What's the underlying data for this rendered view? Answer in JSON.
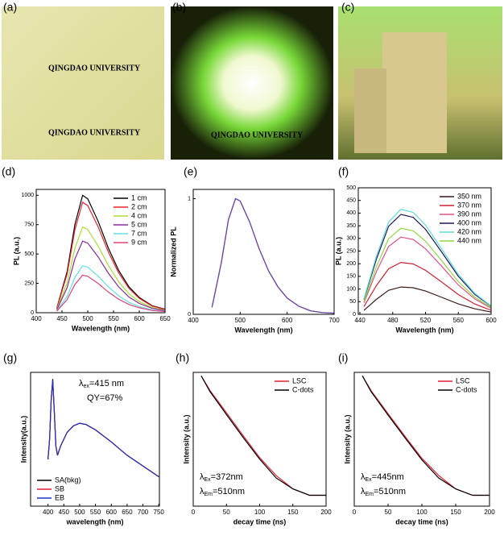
{
  "photos": [
    {
      "label": "(a)",
      "texts": [
        "QINGDAO UNIVERSITY",
        "QINGDAO UNIVERSITY"
      ]
    },
    {
      "label": "(b)",
      "texts": [
        "QINGDAO UNIVERSITY"
      ]
    },
    {
      "label": "(c)",
      "texts": []
    }
  ],
  "chart_data": [
    {
      "type": "line",
      "label": "(d)",
      "ylabel": "PL (a.u.)",
      "xlabel": "Wavelength (nm)",
      "xlim": [
        400,
        650
      ],
      "xticks": [
        400,
        450,
        500,
        550,
        600,
        650
      ],
      "ylim": [
        0,
        1050
      ],
      "yticks": [
        0,
        250,
        500,
        750,
        1000
      ],
      "legend": "upper right",
      "x": [
        440,
        460,
        475,
        490,
        500,
        520,
        540,
        560,
        580,
        600,
        625,
        650
      ],
      "series": [
        {
          "name": "1 cm",
          "color": "#000000",
          "values": [
            40,
            350,
            750,
            1000,
            970,
            780,
            550,
            360,
            220,
            130,
            60,
            30
          ]
        },
        {
          "name": "2 cm",
          "color": "#e8202a",
          "values": [
            38,
            330,
            705,
            940,
            912,
            733,
            517,
            338,
            207,
            122,
            56,
            28
          ]
        },
        {
          "name": "4 cm",
          "color": "#a8e030",
          "values": [
            29,
            256,
            548,
            730,
            708,
            569,
            402,
            263,
            161,
            95,
            44,
            22
          ]
        },
        {
          "name": "5 cm",
          "color": "#8a2a9a",
          "values": [
            24,
            214,
            458,
            610,
            592,
            476,
            336,
            220,
            134,
            79,
            37,
            18
          ]
        },
        {
          "name": "7 cm",
          "color": "#60e0e0",
          "values": [
            16,
            140,
            300,
            400,
            388,
            312,
            220,
            144,
            88,
            52,
            24,
            12
          ]
        },
        {
          "name": "9 cm",
          "color": "#e0407a",
          "values": [
            13,
            112,
            240,
            320,
            310,
            250,
            176,
            115,
            70,
            42,
            19,
            10
          ]
        }
      ]
    },
    {
      "type": "line",
      "label": "(e)",
      "ylabel": "Normalized PL",
      "xlabel": "Wavelength (nm)",
      "xlim": [
        400,
        700
      ],
      "xticks": [
        400,
        500,
        600,
        700
      ],
      "ylim": [
        0,
        1.08
      ],
      "yticks": [
        0,
        1
      ],
      "x": [
        440,
        460,
        475,
        490,
        500,
        520,
        540,
        560,
        580,
        600,
        625,
        650,
        675,
        700
      ],
      "series": [
        {
          "color": "#3aa0b0",
          "values": [
            0.06,
            0.45,
            0.82,
            1.0,
            0.98,
            0.8,
            0.57,
            0.38,
            0.24,
            0.14,
            0.07,
            0.03,
            0.015,
            0.01
          ]
        },
        {
          "color": "#d04060",
          "values": [
            0.06,
            0.45,
            0.82,
            1.0,
            0.98,
            0.8,
            0.57,
            0.38,
            0.24,
            0.14,
            0.07,
            0.03,
            0.015,
            0.01
          ]
        },
        {
          "color": "#6a4ab0",
          "values": [
            0.06,
            0.45,
            0.82,
            1.0,
            0.98,
            0.8,
            0.57,
            0.38,
            0.24,
            0.14,
            0.07,
            0.03,
            0.015,
            0.01
          ]
        }
      ]
    },
    {
      "type": "line",
      "label": "(f)",
      "ylabel": "PL (a.u.)",
      "xlabel": "Wavelength (nm)",
      "xlim": [
        438,
        600
      ],
      "xticks": [
        440,
        480,
        520,
        560,
        600
      ],
      "ylim": [
        0,
        500
      ],
      "yticks": [
        0,
        50,
        100,
        150,
        200,
        250,
        300,
        350,
        400,
        450,
        500
      ],
      "legend": "upper right",
      "x": [
        445,
        460,
        475,
        490,
        505,
        520,
        540,
        560,
        580,
        600
      ],
      "series": [
        {
          "name": "350 nm",
          "color": "#3a1a1a",
          "values": [
            16,
            59,
            95,
            108,
            105,
            92,
            67,
            41,
            22,
            9
          ]
        },
        {
          "name": "370 nm",
          "color": "#d02030",
          "values": [
            31,
            113,
            180,
            205,
            199,
            174,
            127,
            78,
            41,
            16
          ]
        },
        {
          "name": "390 nm",
          "color": "#e0508a",
          "values": [
            46,
            168,
            268,
            305,
            296,
            259,
            189,
            116,
            61,
            24
          ]
        },
        {
          "name": "400 nm",
          "color": "#1a1a5a",
          "values": [
            59,
            217,
            348,
            395,
            383,
            336,
            245,
            150,
            79,
            32
          ]
        },
        {
          "name": "420 nm",
          "color": "#60d8d8",
          "values": [
            62,
            228,
            365,
            415,
            403,
            353,
            257,
            158,
            83,
            33
          ]
        },
        {
          "name": "440 nm",
          "color": "#90d840",
          "values": [
            51,
            187,
            299,
            340,
            330,
            289,
            211,
            129,
            68,
            27
          ]
        }
      ]
    },
    {
      "type": "line",
      "label": "(g)",
      "ylabel": "Intensity(a.u.)",
      "xlabel": "wavelength (nm)",
      "xlim": [
        345,
        752
      ],
      "xticks": [
        400,
        450,
        500,
        550,
        600,
        650,
        700,
        750
      ],
      "ylim": [
        0,
        1
      ],
      "legend": "lower left",
      "annotation": [
        [
          {
            "text": "λ"
          },
          {
            "text": "ex",
            "sub": true
          },
          {
            "text": "=415 nm"
          }
        ],
        [
          {
            "text": "QY=67%"
          }
        ]
      ],
      "x": [
        400,
        405,
        410,
        415,
        420,
        425,
        430,
        440,
        460,
        480,
        500,
        520,
        550,
        600,
        650,
        700,
        750
      ],
      "series": [
        {
          "name": "SA(bkg)",
          "color": "#000000",
          "values": [
            0.35,
            0.5,
            0.8,
            0.95,
            0.7,
            0.45,
            0.38,
            0.45,
            0.55,
            0.6,
            0.62,
            0.61,
            0.57,
            0.48,
            0.38,
            0.3,
            0.22
          ]
        },
        {
          "name": "SB",
          "color": "#e02030",
          "values": [
            0.35,
            0.5,
            0.8,
            0.93,
            0.7,
            0.45,
            0.38,
            0.45,
            0.55,
            0.6,
            0.62,
            0.61,
            0.57,
            0.48,
            0.38,
            0.3,
            0.22
          ]
        },
        {
          "name": "EB",
          "color": "#2030c0",
          "values": [
            0.35,
            0.5,
            0.8,
            0.94,
            0.7,
            0.45,
            0.38,
            0.45,
            0.55,
            0.6,
            0.62,
            0.61,
            0.57,
            0.48,
            0.38,
            0.3,
            0.22
          ]
        }
      ]
    },
    {
      "type": "line",
      "label": "(h)",
      "ylabel": "Intensity (a.u.)",
      "xlabel": "decay time (ns)",
      "xlim": [
        0,
        200
      ],
      "xticks": [
        0,
        50,
        100,
        150,
        200
      ],
      "ylim": [
        1,
        5000
      ],
      "ylog": true,
      "legend": "upper right",
      "annotation": [
        [
          {
            "text": "λ"
          },
          {
            "text": "Ex",
            "sub": true
          },
          {
            "text": "=372nm"
          }
        ],
        [
          {
            "text": "λ"
          },
          {
            "text": "Em",
            "sub": true
          },
          {
            "text": "=510nm"
          }
        ]
      ],
      "x": [
        12,
        25,
        50,
        75,
        100,
        125,
        150,
        175,
        200
      ],
      "series": [
        {
          "name": "LSC",
          "color": "#e02030",
          "values": [
            4000,
            1600,
            380,
            90,
            22,
            7,
            3,
            2,
            2
          ]
        },
        {
          "name": "C-dots",
          "color": "#000000",
          "values": [
            4000,
            1500,
            340,
            80,
            20,
            6,
            3,
            2,
            2
          ]
        }
      ]
    },
    {
      "type": "line",
      "label": "(i)",
      "ylabel": "Intensity (a.u.)",
      "xlabel": "decay time (ns)",
      "xlim": [
        0,
        200
      ],
      "xticks": [
        0,
        50,
        100,
        150,
        200
      ],
      "ylim": [
        1,
        5000
      ],
      "ylog": true,
      "legend": "upper right",
      "annotation": [
        [
          {
            "text": "λ"
          },
          {
            "text": "Ex",
            "sub": true
          },
          {
            "text": "=445nm"
          }
        ],
        [
          {
            "text": "λ"
          },
          {
            "text": "Em",
            "sub": true
          },
          {
            "text": "=510nm"
          }
        ]
      ],
      "x": [
        12,
        25,
        50,
        75,
        100,
        125,
        150,
        175,
        200
      ],
      "series": [
        {
          "name": "LSC",
          "color": "#e02030",
          "values": [
            4000,
            1550,
            360,
            85,
            21,
            7,
            3,
            2,
            2
          ]
        },
        {
          "name": "C-dots",
          "color": "#000000",
          "values": [
            4000,
            1450,
            330,
            78,
            19,
            6,
            3,
            2,
            2
          ]
        }
      ]
    }
  ]
}
